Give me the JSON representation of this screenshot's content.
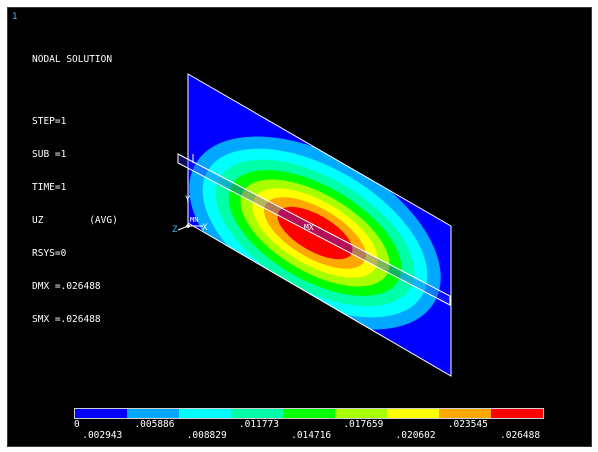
{
  "window_number": "1",
  "info": {
    "title": "NODAL SOLUTION",
    "step": "STEP=1",
    "sub": "SUB =1",
    "time": "TIME=1",
    "result": "UZ        (AVG)",
    "rsys": "RSYS=0",
    "dmx": "DMX =.026488",
    "smx": "SMX =.026488"
  },
  "markers": {
    "max": "MX",
    "min": "MN"
  },
  "axes": {
    "y": "Y",
    "z": "Z",
    "x": "X"
  },
  "legend": {
    "colors": [
      "#0000ff",
      "#00a8ff",
      "#00ffff",
      "#00ffa8",
      "#00ff00",
      "#a8ff00",
      "#ffff00",
      "#ffa800",
      "#ff0000"
    ],
    "ticks_top": [
      "0",
      ".005886",
      ".011773",
      ".017659",
      ".023545"
    ],
    "ticks_bottom": [
      ".002943",
      ".008829",
      ".014716",
      ".020602",
      ".026488"
    ]
  }
}
